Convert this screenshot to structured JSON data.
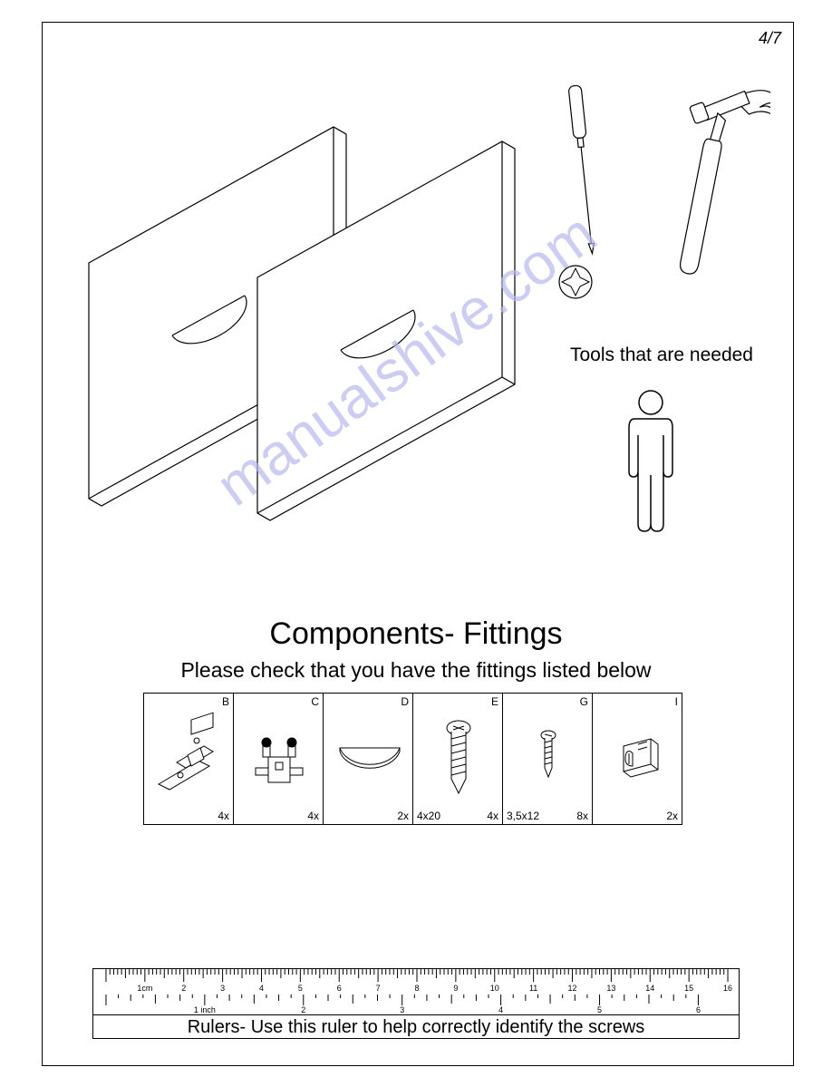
{
  "page_number": "4/7",
  "tools_label": "Tools that are needed",
  "watermark": "manualshive.com",
  "components": {
    "title": "Components- Fittings",
    "subtitle": "Please check that you have the fittings listed below",
    "items": [
      {
        "letter": "B",
        "qty": "4x",
        "spec": ""
      },
      {
        "letter": "C",
        "qty": "4x",
        "spec": ""
      },
      {
        "letter": "D",
        "qty": "2x",
        "spec": ""
      },
      {
        "letter": "E",
        "qty": "4x",
        "spec": "4x20"
      },
      {
        "letter": "G",
        "qty": "8x",
        "spec": "3,5x12"
      },
      {
        "letter": "I",
        "qty": "2x",
        "spec": ""
      }
    ]
  },
  "ruler": {
    "text": "Rulers- Use this ruler to help correctly identify the screws",
    "cm_labels": [
      "1cm",
      "2",
      "3",
      "4",
      "5",
      "6",
      "7",
      "8",
      "9",
      "10",
      "11",
      "12",
      "13",
      "14",
      "15",
      "16"
    ],
    "inch_labels": [
      "1 inch",
      "2",
      "3",
      "4",
      "5",
      "6"
    ]
  },
  "colors": {
    "line": "#000000",
    "bg": "#ffffff",
    "watermark": "#b8b8f0"
  }
}
